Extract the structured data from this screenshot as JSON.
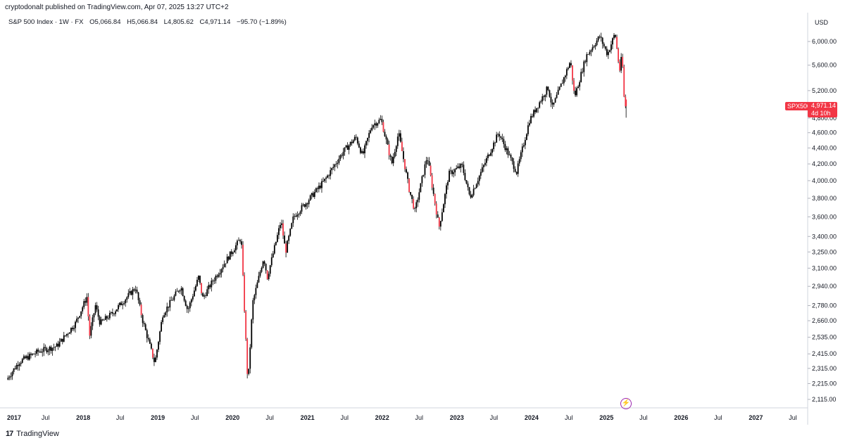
{
  "header": {
    "text": "cryptodonalt published on TradingView.com, Apr 07, 2025 13:27 UTC+2"
  },
  "legend": {
    "symbol": "S&P 500 Index · 1W · FX",
    "open": "O5,066.84",
    "high": "H5,066.84",
    "low": "L4,805.62",
    "close": "C4,971.14",
    "change": "−95.70 (−1.89%)"
  },
  "price_axis": {
    "currency": "USD",
    "current_symbol": "SPX500",
    "current_price": "4,971.14",
    "countdown": "4d 10h"
  },
  "footer": {
    "brand": "TradingView",
    "logo": "17"
  },
  "colors": {
    "up": "#000000",
    "down": "#f23645",
    "accent": "#f23645",
    "bolt": "#9c27b0"
  },
  "chart_data": {
    "type": "line",
    "title": "S&P 500 Index · 1W · FX",
    "ylabel": "USD",
    "scale": "log",
    "ylim": [
      2070,
      6450
    ],
    "y_ticks": [
      2115,
      2215,
      2315,
      2415,
      2535,
      2660,
      2780,
      2940,
      3100,
      3250,
      3400,
      3600,
      3800,
      4000,
      4200,
      4400,
      4600,
      4800,
      5200,
      5600,
      6000
    ],
    "y_tick_labels": [
      "2,115.00",
      "2,215.00",
      "2,315.00",
      "2,415.00",
      "2,535.00",
      "2,660.00",
      "2,780.00",
      "2,940.00",
      "3,100.00",
      "3,250.00",
      "3,400.00",
      "3,600.00",
      "3,800.00",
      "4,000.00",
      "4,200.00",
      "4,400.00",
      "4,600.00",
      "4,800.00",
      "5,200.00",
      "5,600.00",
      "6,000.00"
    ],
    "x_ticks": [
      "2017-01-01",
      "2017-07-01",
      "2018-01-01",
      "2018-07-01",
      "2019-01-01",
      "2019-07-01",
      "2020-01-01",
      "2020-07-01",
      "2021-01-01",
      "2021-07-01",
      "2022-01-01",
      "2022-07-01",
      "2023-01-01",
      "2023-07-01",
      "2024-01-01",
      "2024-07-01",
      "2025-01-01",
      "2025-07-01",
      "2026-01-01",
      "2026-07-01",
      "2027-01-01",
      "2027-07-01"
    ],
    "x_tick_labels": [
      "2017",
      "Jul",
      "2018",
      "Jul",
      "2019",
      "Jul",
      "2020",
      "Jul",
      "2021",
      "Jul",
      "2022",
      "Jul",
      "2023",
      "Jul",
      "2024",
      "Jul",
      "2025",
      "Jul",
      "2026",
      "Jul",
      "2027",
      "Jul"
    ],
    "grid": false,
    "series": [
      {
        "x": [
          "2016-12-30",
          "2017-03-01",
          "2017-06-01",
          "2017-09-01",
          "2017-12-01",
          "2018-01-26",
          "2018-02-09",
          "2018-03-09",
          "2018-04-01",
          "2018-06-01",
          "2018-09-21",
          "2018-10-26",
          "2018-12-24",
          "2019-02-01",
          "2019-04-30",
          "2019-06-03",
          "2019-07-26",
          "2019-08-15",
          "2019-10-01",
          "2019-12-01",
          "2020-02-19",
          "2020-03-23",
          "2020-04-15",
          "2020-06-08",
          "2020-06-26",
          "2020-09-01",
          "2020-09-23",
          "2020-11-01",
          "2021-01-01",
          "2021-04-01",
          "2021-07-01",
          "2021-09-02",
          "2021-10-04",
          "2021-11-18",
          "2022-01-03",
          "2022-02-24",
          "2022-03-29",
          "2022-05-20",
          "2022-06-17",
          "2022-08-16",
          "2022-10-13",
          "2022-11-30",
          "2023-02-02",
          "2023-03-13",
          "2023-06-01",
          "2023-07-31",
          "2023-10-27",
          "2023-12-29",
          "2024-03-28",
          "2024-04-19",
          "2024-07-16",
          "2024-08-05",
          "2024-10-01",
          "2024-12-06",
          "2025-01-13",
          "2025-02-19",
          "2025-03-13",
          "2025-03-25",
          "2025-04-04",
          "2025-04-07"
        ],
        "values": [
          2240,
          2360,
          2430,
          2470,
          2640,
          2850,
          2550,
          2780,
          2640,
          2720,
          2930,
          2660,
          2350,
          2710,
          2940,
          2740,
          3020,
          2840,
          2980,
          3150,
          3390,
          2200,
          2800,
          3200,
          3020,
          3560,
          3250,
          3600,
          3750,
          4000,
          4350,
          4540,
          4300,
          4700,
          4780,
          4200,
          4600,
          3900,
          3660,
          4300,
          3490,
          4080,
          4180,
          3810,
          4250,
          4600,
          4100,
          4770,
          5250,
          4950,
          5670,
          5100,
          5750,
          6090,
          5780,
          6150,
          5500,
          5780,
          5100,
          4971.14
        ]
      }
    ],
    "last_candle": {
      "date": "2025-04-07",
      "open": 5066.84,
      "high": 5066.84,
      "low": 4805.62,
      "close": 4971.14
    }
  }
}
